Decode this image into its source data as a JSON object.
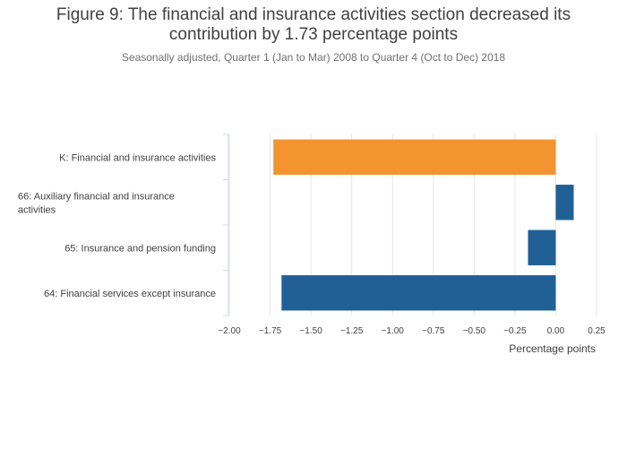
{
  "title_lines": [
    "Figure 9: The financial and insurance activities section decreased its",
    "contribution by 1.73 percentage points"
  ],
  "subtitle": "Seasonally adjusted, Quarter 1 (Jan to Mar) 2008 to Quarter 4 (Oct to Dec) 2018",
  "chart_data": {
    "type": "bar",
    "orientation": "horizontal",
    "title": "Figure 9: The financial and insurance activities section decreased its contribution by 1.73 percentage points",
    "subtitle": "Seasonally adjusted, Quarter 1 (Jan to Mar) 2008 to Quarter 4 (Oct to Dec) 2018",
    "categories": [
      [
        "K: Financial and insurance activities"
      ],
      [
        "66: Auxiliary financial and insurance",
        "activities"
      ],
      [
        "65: Insurance and pension funding"
      ],
      [
        "64: Financial services except insurance"
      ]
    ],
    "values": [
      -1.73,
      0.11,
      -0.17,
      -1.68
    ],
    "colors": [
      "#f39431",
      "#206095",
      "#206095",
      "#206095"
    ],
    "xlabel": "Percentage points",
    "xlim": [
      -2.0,
      0.25
    ],
    "xticks": [
      "-2.00",
      "-1.75",
      "-1.50",
      "-1.25",
      "-1.00",
      "-0.75",
      "-0.50",
      "-0.25",
      "0.00",
      "0.25"
    ],
    "grid": true
  }
}
